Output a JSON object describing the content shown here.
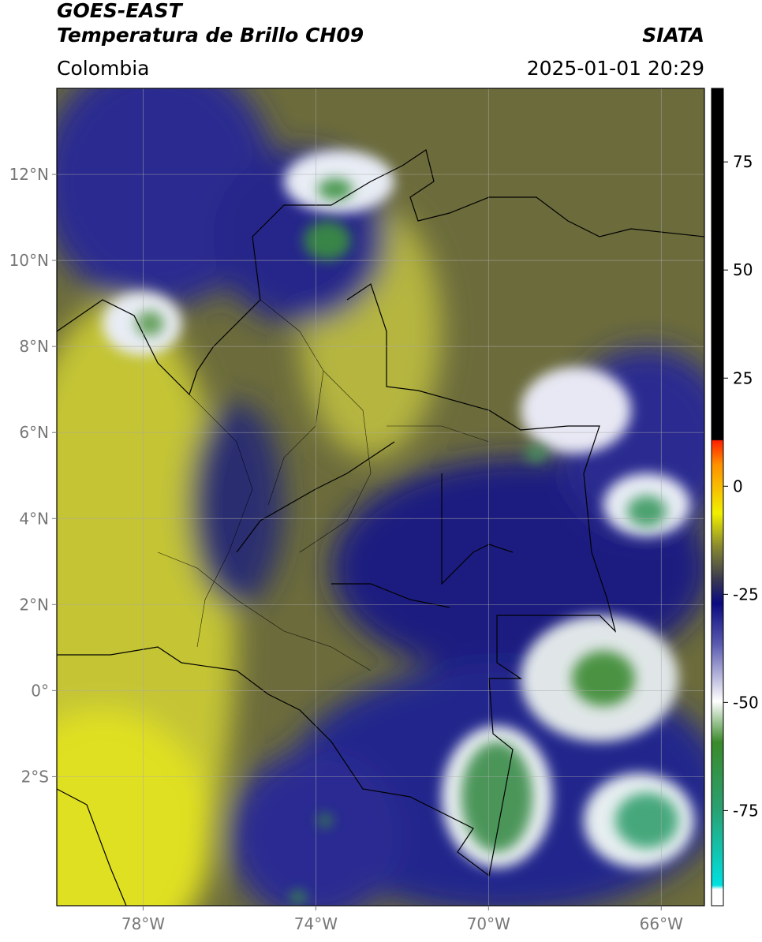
{
  "map": {
    "title": "GOES-EAST",
    "subtitle": "Temperatura de Brillo CH09",
    "source": "SIATA",
    "region": "Colombia",
    "timestamp": "2025-01-01 20:29",
    "xlim": [
      -80,
      -65
    ],
    "ylim": [
      -5,
      14
    ],
    "xticks": [
      {
        "value": -78,
        "label": "78°W"
      },
      {
        "value": -74,
        "label": "74°W"
      },
      {
        "value": -70,
        "label": "70°W"
      },
      {
        "value": -66,
        "label": "66°W"
      }
    ],
    "yticks": [
      {
        "value": 12,
        "label": "12°N"
      },
      {
        "value": 10,
        "label": "10°N"
      },
      {
        "value": 8,
        "label": "8°N"
      },
      {
        "value": 6,
        "label": "6°N"
      },
      {
        "value": 4,
        "label": "4°N"
      },
      {
        "value": 2,
        "label": "2°N"
      },
      {
        "value": 0,
        "label": "0°"
      },
      {
        "value": -2,
        "label": "2°S"
      }
    ],
    "grid": true,
    "colorbar": {
      "lim": [
        -97,
        92
      ],
      "ticks": [
        75,
        50,
        25,
        0,
        -25,
        -50,
        -75
      ]
    }
  }
}
